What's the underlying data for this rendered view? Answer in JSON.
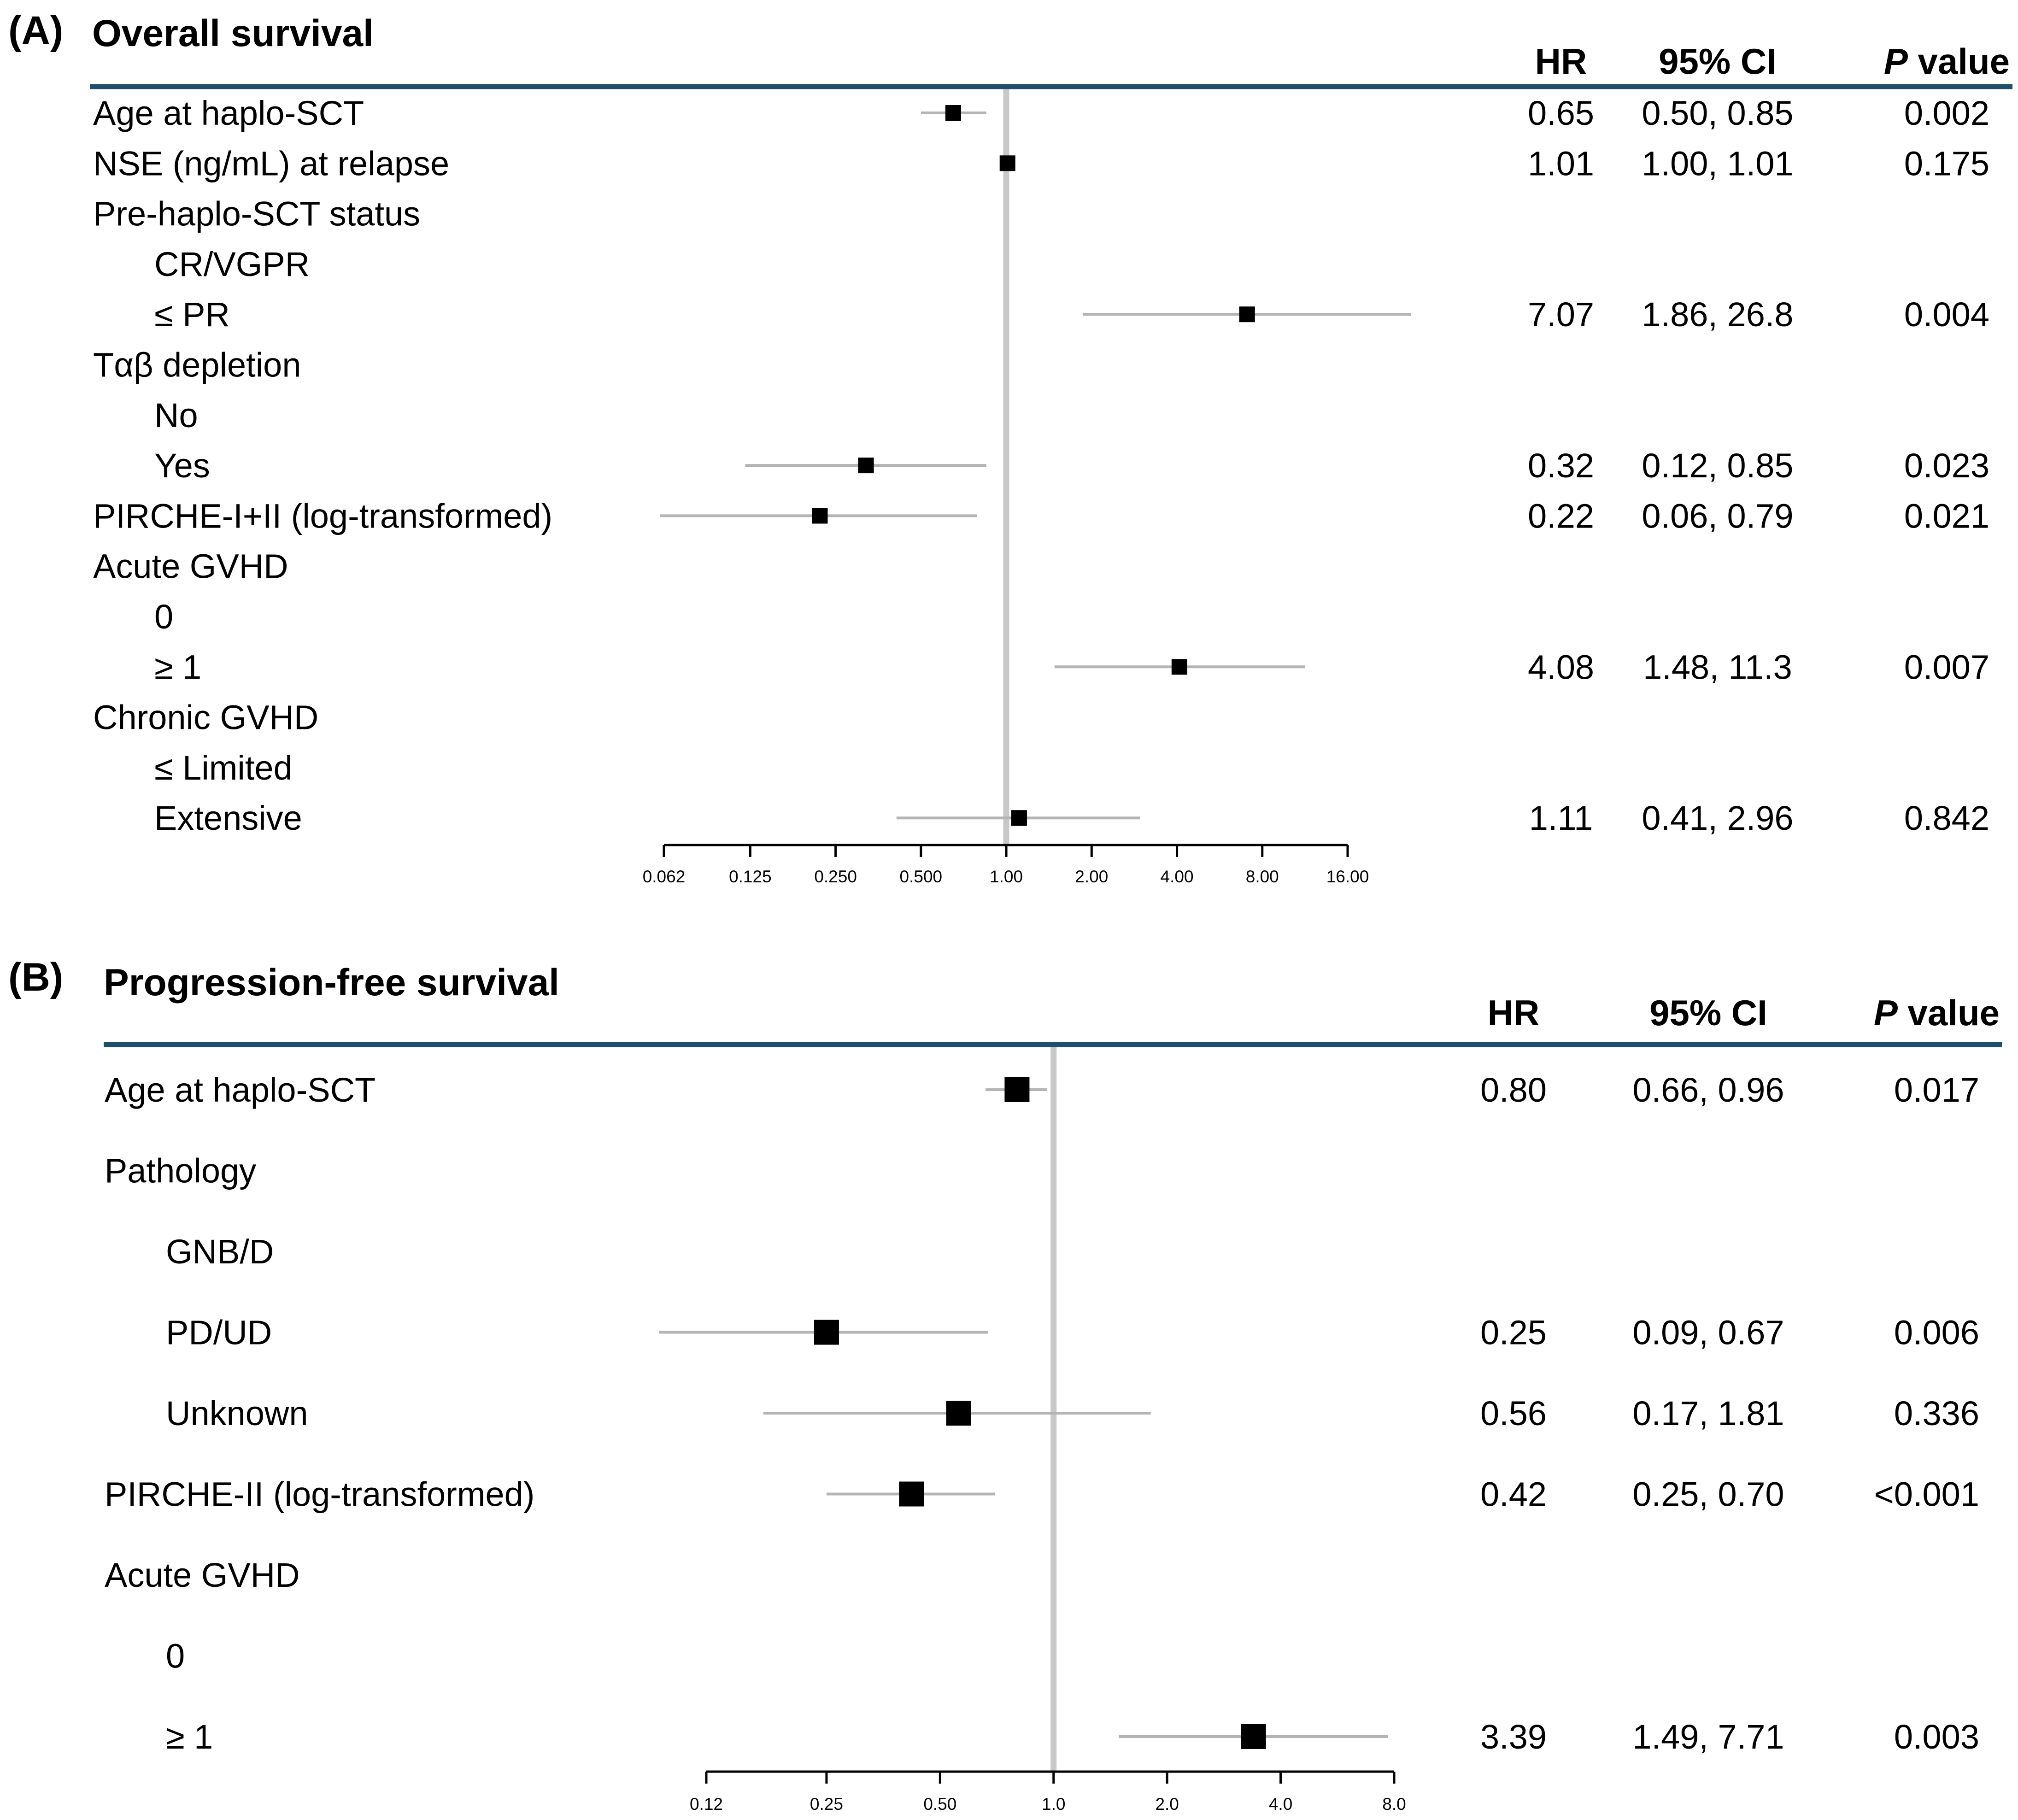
{
  "chart_data": [
    {
      "type": "forest",
      "panel_label": "(A)",
      "title": "Overall survival",
      "column_headers": {
        "hr": "HR",
        "ci": "95% CI",
        "p_italic": "P",
        "p_rest": " value"
      },
      "reference_line": 1,
      "x_scale": "log2",
      "x_range": [
        0.062,
        16
      ],
      "x_ticks": [
        0.062,
        0.125,
        0.25,
        0.5,
        1,
        2,
        4,
        8,
        16
      ],
      "x_tick_labels": [
        "0.062",
        "0.125",
        "0.250",
        "0.500",
        "1.00",
        "2.00",
        "4.00",
        "8.00",
        "16.00"
      ],
      "rows": [
        {
          "label": "Age at haplo-SCT",
          "indent": 0,
          "hr": 0.65,
          "lo": 0.5,
          "hi": 0.85,
          "hr_text": "0.65",
          "ci_text": "0.50, 0.85",
          "p_text": "0.002"
        },
        {
          "label": "NSE (ng/mL) at relapse",
          "indent": 0,
          "hr": 1.01,
          "lo": 1.0,
          "hi": 1.01,
          "hr_text": "1.01",
          "ci_text": "1.00, 1.01",
          "p_text": "0.175"
        },
        {
          "label": "Pre-haplo-SCT status",
          "indent": 0
        },
        {
          "label": "CR/VGPR",
          "indent": 1
        },
        {
          "label": "≤ PR",
          "indent": 1,
          "hr": 7.07,
          "lo": 1.86,
          "hi": 26.8,
          "hr_text": "7.07",
          "ci_text": "1.86, 26.8",
          "p_text": "0.004"
        },
        {
          "label": "Tαβ depletion",
          "indent": 0
        },
        {
          "label": "No",
          "indent": 1
        },
        {
          "label": "Yes",
          "indent": 1,
          "hr": 0.32,
          "lo": 0.12,
          "hi": 0.85,
          "hr_text": "0.32",
          "ci_text": "0.12, 0.85",
          "p_text": "0.023"
        },
        {
          "label": "PIRCHE-I+II (log-transformed)",
          "indent": 0,
          "hr": 0.22,
          "lo": 0.06,
          "hi": 0.79,
          "hr_text": "0.22",
          "ci_text": "0.06, 0.79",
          "p_text": "0.021"
        },
        {
          "label": "Acute GVHD",
          "indent": 0
        },
        {
          "label": "0",
          "indent": 1
        },
        {
          "label": "≥ 1",
          "indent": 1,
          "hr": 4.08,
          "lo": 1.48,
          "hi": 11.3,
          "hr_text": "4.08",
          "ci_text": "1.48, 11.3",
          "p_text": "0.007"
        },
        {
          "label": "Chronic GVHD",
          "indent": 0
        },
        {
          "label": "≤ Limited",
          "indent": 1
        },
        {
          "label": "Extensive",
          "indent": 1,
          "hr": 1.11,
          "lo": 0.41,
          "hi": 2.96,
          "hr_text": "1.11",
          "ci_text": "0.41, 2.96",
          "p_text": "0.842"
        }
      ]
    },
    {
      "type": "forest",
      "panel_label": "(B)",
      "title": "Progression-free survival",
      "column_headers": {
        "hr": "HR",
        "ci": "95% CI",
        "p_italic": "P",
        "p_rest": " value"
      },
      "reference_line": 1,
      "x_scale": "log2",
      "x_range": [
        0.12,
        8
      ],
      "x_ticks": [
        0.12,
        0.25,
        0.5,
        1,
        2,
        4,
        8
      ],
      "x_tick_labels": [
        "0.12",
        "0.25",
        "0.50",
        "1.0",
        "2.0",
        "4.0",
        "8.0"
      ],
      "rows": [
        {
          "label": "Age at haplo-SCT",
          "indent": 0,
          "hr": 0.8,
          "lo": 0.66,
          "hi": 0.96,
          "hr_text": "0.80",
          "ci_text": "0.66, 0.96",
          "p_text": "0.017"
        },
        {
          "label": "Pathology",
          "indent": 0
        },
        {
          "label": "GNB/D",
          "indent": 1
        },
        {
          "label": "PD/UD",
          "indent": 1,
          "hr": 0.25,
          "lo": 0.09,
          "hi": 0.67,
          "hr_text": "0.25",
          "ci_text": "0.09, 0.67",
          "p_text": "0.006"
        },
        {
          "label": "Unknown",
          "indent": 1,
          "hr": 0.56,
          "lo": 0.17,
          "hi": 1.81,
          "hr_text": "0.56",
          "ci_text": "0.17, 1.81",
          "p_text": "0.336"
        },
        {
          "label": "PIRCHE-II (log-transformed)",
          "indent": 0,
          "hr": 0.42,
          "lo": 0.25,
          "hi": 0.7,
          "hr_text": "0.42",
          "ci_text": "0.25, 0.70",
          "p_text": "<0.001"
        },
        {
          "label": "Acute GVHD",
          "indent": 0
        },
        {
          "label": "0",
          "indent": 1
        },
        {
          "label": "≥ 1",
          "indent": 1,
          "hr": 3.39,
          "lo": 1.49,
          "hi": 7.71,
          "hr_text": "3.39",
          "ci_text": "1.49, 7.71",
          "p_text": "0.003"
        }
      ]
    }
  ],
  "colors": {
    "header_rule": "#1f4e6e",
    "reference_line": "#c8c8c8",
    "ci_line": "#b4b4b4",
    "marker": "#000000",
    "axis": "#000000"
  }
}
